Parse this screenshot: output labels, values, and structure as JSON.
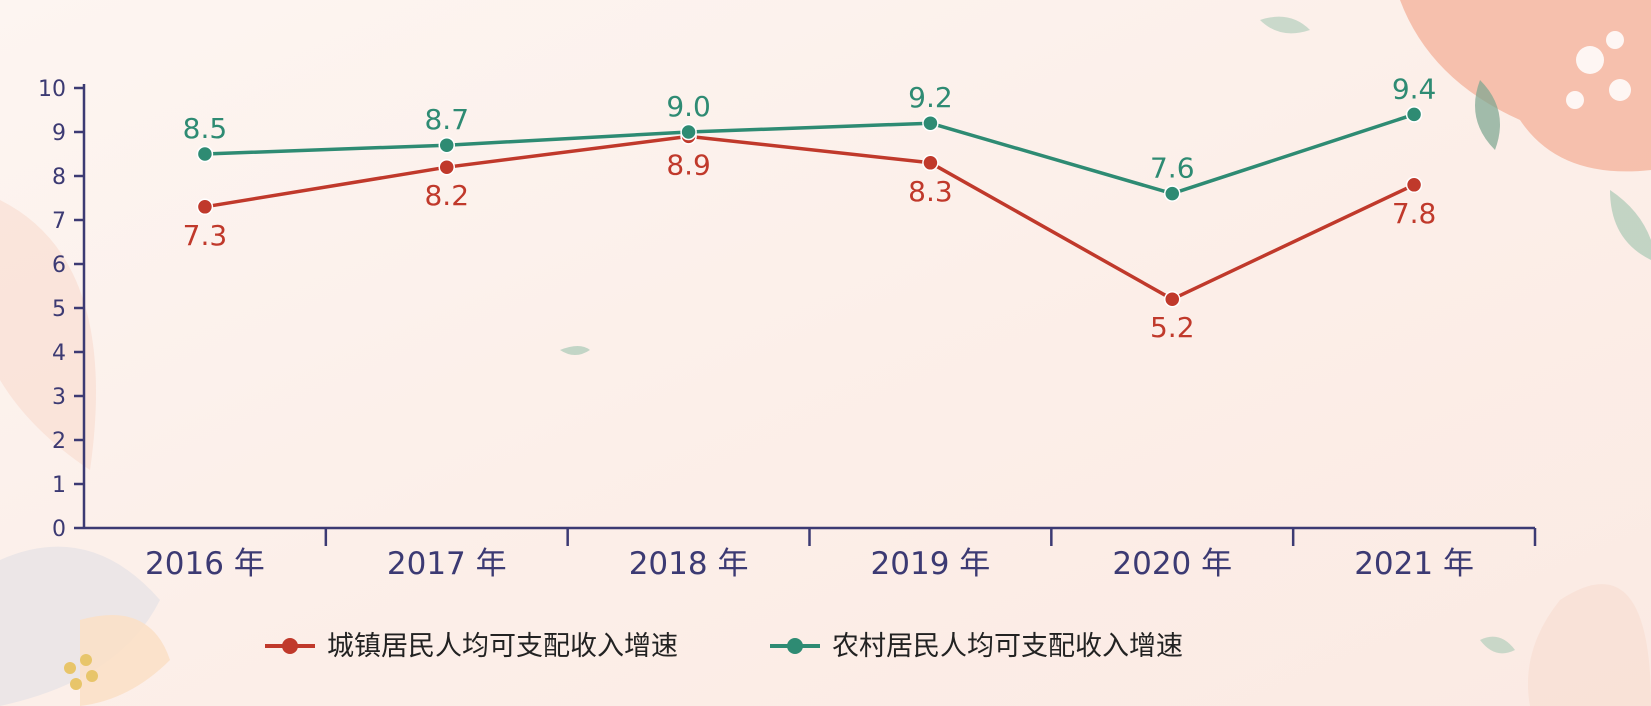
{
  "chart_data": {
    "type": "line",
    "categories": [
      "2016 年",
      "2017 年",
      "2018 年",
      "2019 年",
      "2020 年",
      "2021 年"
    ],
    "series": [
      {
        "name": "城镇居民人均可支配收入增速",
        "color": "#c0392b",
        "values": [
          7.3,
          8.2,
          8.9,
          8.3,
          5.2,
          7.8
        ],
        "label_position": "below"
      },
      {
        "name": "农村居民人均可支配收入增速",
        "color": "#2e8b73",
        "values": [
          8.5,
          8.7,
          9.0,
          9.2,
          7.6,
          9.4
        ],
        "label_position": "above"
      }
    ],
    "ylim": [
      0,
      10
    ],
    "yticks": [
      0,
      1,
      2,
      3,
      4,
      5,
      6,
      7,
      8,
      9,
      10
    ],
    "legend": "bottom",
    "grid": false
  },
  "colors": {
    "axis": "#3c3a73",
    "background": "#fcf1ec"
  }
}
